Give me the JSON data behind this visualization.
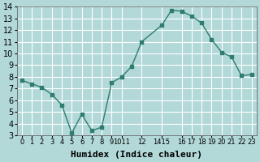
{
  "x": [
    0,
    1,
    2,
    3,
    4,
    5,
    6,
    7,
    8,
    9,
    10,
    11,
    12,
    14,
    15,
    16,
    17,
    18,
    19,
    20,
    21,
    22,
    23
  ],
  "y": [
    7.7,
    7.4,
    7.1,
    6.5,
    5.6,
    3.2,
    4.8,
    3.4,
    3.7,
    7.5,
    8.0,
    8.9,
    11.0,
    12.4,
    13.7,
    13.6,
    13.2,
    12.6,
    11.2,
    10.1,
    9.7,
    8.1,
    8.2
  ],
  "line_color": "#2e7d6e",
  "marker_color": "#2e7d6e",
  "bg_color": "#b2d8d8",
  "grid_color": "#ffffff",
  "xlabel": "Humidex (Indice chaleur)",
  "xlim": [
    -0.5,
    23.5
  ],
  "ylim": [
    3,
    14
  ],
  "yticks": [
    3,
    4,
    5,
    6,
    7,
    8,
    9,
    10,
    11,
    12,
    13,
    14
  ],
  "xtick_positions": [
    0,
    1,
    2,
    3,
    4,
    5,
    6,
    7,
    8,
    9,
    10,
    12,
    14,
    16,
    17,
    18,
    19,
    20,
    21,
    22,
    23
  ],
  "xtick_labels": [
    "0",
    "1",
    "2",
    "3",
    "4",
    "5",
    "6",
    "7",
    "8",
    "9",
    "1011",
    "12",
    "1415",
    "16",
    "17",
    "18",
    "19",
    "20",
    "21",
    "22",
    "23"
  ],
  "title_fontsize": 7,
  "label_fontsize": 8,
  "tick_fontsize": 6
}
